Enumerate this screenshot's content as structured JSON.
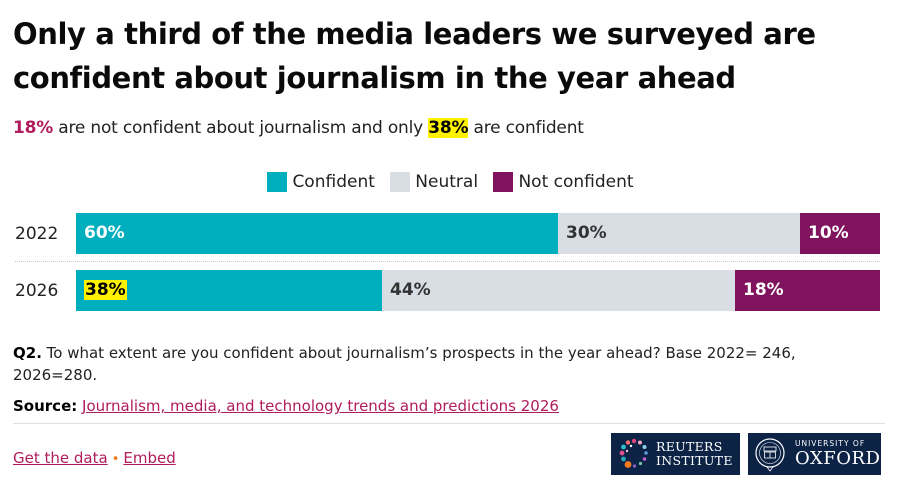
{
  "title": "Only a third of the media leaders we surveyed are confident about journalism in the year ahead",
  "subtitle": {
    "highlight1": "18%",
    "text1": " are not confident about journalism and only ",
    "highlight2": "38%",
    "text2": " are confident"
  },
  "colors": {
    "confident": "#00afbd",
    "neutral": "#d9dee5",
    "not_confident": "#80135d",
    "highlight_yellow": "#fff200",
    "accent_text": "#b01c5c",
    "logo_bg": "#0c2346"
  },
  "chart_data": {
    "type": "bar",
    "orientation": "horizontal",
    "stacked": true,
    "title": "Only a third of the media leaders we surveyed are confident about journalism in the year ahead",
    "categories": [
      "2022",
      "2026"
    ],
    "series": [
      {
        "name": "Confident",
        "values": [
          60,
          38
        ],
        "labels": [
          "60%",
          "38%"
        ]
      },
      {
        "name": "Neutral",
        "values": [
          30,
          44
        ],
        "labels": [
          "30%",
          "44%"
        ]
      },
      {
        "name": "Not confident",
        "values": [
          10,
          18
        ],
        "labels": [
          "10%",
          "18%"
        ]
      }
    ],
    "highlighted_labels": [
      {
        "series": "Confident",
        "category": "2026"
      }
    ],
    "xlabel": "",
    "ylabel": "",
    "xlim": [
      0,
      100
    ],
    "grid": false,
    "legend": "top-center",
    "unit": "%"
  },
  "note": {
    "label": "Q2.",
    "text": " To what extent are you confident about journalism’s prospects in the year ahead? Base 2022= 246, 2026=280."
  },
  "source": {
    "label": "Source:",
    "link_text": "Journalism, media, and technology trends and predictions 2026"
  },
  "footer": {
    "get_data": "Get the data",
    "separator": "•",
    "embed": "Embed"
  },
  "logos": {
    "reuters": {
      "line1": "REUTERS",
      "line2": "INSTITUTE"
    },
    "oxford": {
      "line1": "UNIVERSITY OF",
      "line2": "OXFORD"
    }
  }
}
